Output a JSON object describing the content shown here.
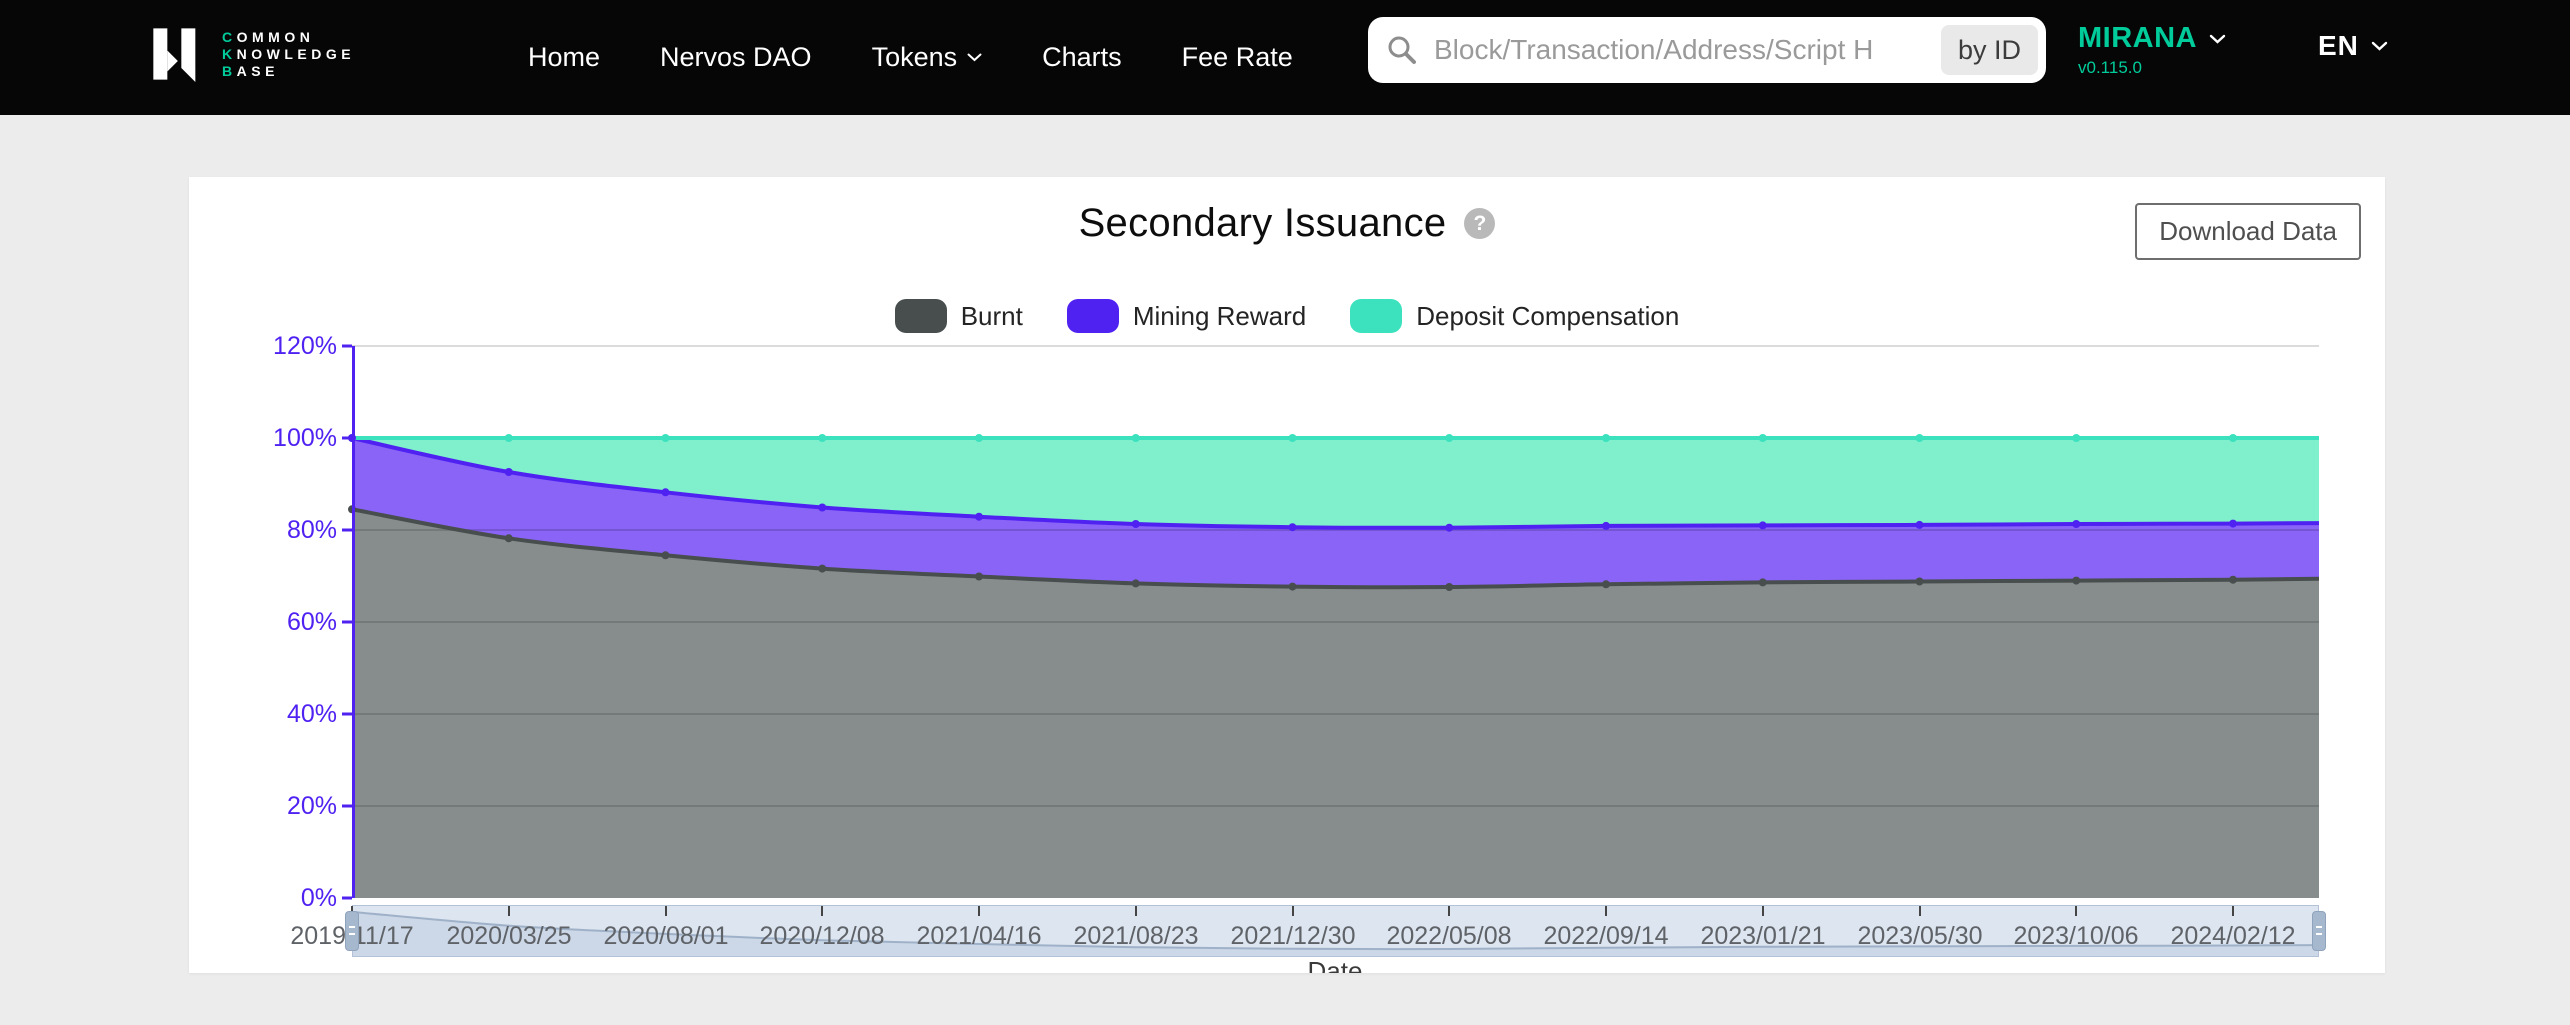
{
  "navbar": {
    "logo": {
      "line1_accent": "C",
      "line1_rest": "OMMON",
      "line2_accent": "K",
      "line2_rest": "NOWLEDGE",
      "line3_accent": "B",
      "line3_rest": "ASE"
    },
    "links": [
      {
        "label": "Home",
        "dropdown": false
      },
      {
        "label": "Nervos DAO",
        "dropdown": false
      },
      {
        "label": "Tokens",
        "dropdown": true
      },
      {
        "label": "Charts",
        "dropdown": false
      },
      {
        "label": "Fee Rate",
        "dropdown": false
      }
    ],
    "search": {
      "placeholder": "Block/Transaction/Address/Script H",
      "by_id_label": "by ID"
    },
    "network": {
      "name": "MIRANA",
      "version": "v0.115.0"
    },
    "language": {
      "label": "EN"
    },
    "accent_color": "#00CC9B"
  },
  "card": {
    "title": "Secondary Issuance",
    "help_glyph": "?",
    "download_button": "Download Data"
  },
  "chart_data": {
    "type": "area",
    "stacked": true,
    "unit": "%",
    "title": "Secondary Issuance",
    "xlabel": "Date",
    "ylabel": "",
    "ylim": [
      0,
      120
    ],
    "y_ticks": [
      "0%",
      "20%",
      "40%",
      "60%",
      "80%",
      "100%",
      "120%"
    ],
    "x": [
      "2019/11/17",
      "2020/03/25",
      "2020/08/01",
      "2020/12/08",
      "2021/04/16",
      "2021/08/23",
      "2021/12/30",
      "2022/05/08",
      "2022/09/14",
      "2023/01/21",
      "2023/05/30",
      "2023/10/06",
      "2024/02/12"
    ],
    "series": [
      {
        "name": "Burnt",
        "color": "#484E4E",
        "fill": "#878D8D",
        "values": [
          84.5,
          78.2,
          74.5,
          71.6,
          69.9,
          68.4,
          67.7,
          67.6,
          68.2,
          68.6,
          68.8,
          69.0,
          69.2
        ],
        "right_edge": 69.4
      },
      {
        "name": "Mining Reward",
        "color": "#4F22F2",
        "fill": "#8A64F6",
        "values": [
          15.5,
          14.4,
          13.7,
          13.3,
          13.0,
          12.9,
          12.9,
          12.9,
          12.7,
          12.4,
          12.3,
          12.3,
          12.2
        ],
        "right_edge": 12.1
      },
      {
        "name": "Deposit Compensation",
        "color": "#3CE2BE",
        "fill": "#7FEFCC",
        "values": [
          0.0,
          7.4,
          11.8,
          15.1,
          17.1,
          18.7,
          19.4,
          19.5,
          19.1,
          19.0,
          18.9,
          18.7,
          18.6
        ],
        "right_edge": 18.5
      }
    ],
    "legend_position": "top",
    "grid": true,
    "axis_color": "#4F22F2",
    "datazoom": {
      "present": true,
      "range_selected": "full"
    }
  }
}
